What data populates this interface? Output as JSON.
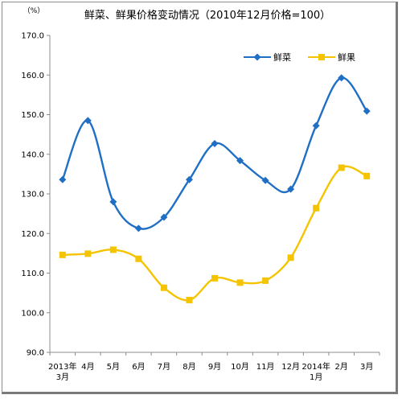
{
  "chart_data": {
    "type": "line",
    "title": "鲜菜、鲜果价格变动情况（2010年12月价格=100）",
    "ylabel": "（%）",
    "xlabel": "",
    "ylim": [
      90,
      170
    ],
    "y_ticks": [
      "90.0",
      "100.0",
      "110.0",
      "120.0",
      "130.0",
      "140.0",
      "150.0",
      "160.0",
      "170.0"
    ],
    "categories": [
      [
        "2013年",
        "3月"
      ],
      [
        "4月"
      ],
      [
        "5月"
      ],
      [
        "6月"
      ],
      [
        "7月"
      ],
      [
        "8月"
      ],
      [
        "9月"
      ],
      [
        "10月"
      ],
      [
        "11月"
      ],
      [
        "12月"
      ],
      [
        "2014年",
        "1月"
      ],
      [
        "2月"
      ],
      [
        "3月"
      ]
    ],
    "series": [
      {
        "name": "鲜菜",
        "color": "#1f6fc5",
        "marker": "diamond",
        "values": [
          133.6,
          148.5,
          128.0,
          121.3,
          124.1,
          133.6,
          142.7,
          138.4,
          133.4,
          131.2,
          147.2,
          159.3,
          150.9
        ]
      },
      {
        "name": "鲜果",
        "color": "#f5c400",
        "marker": "square",
        "values": [
          114.6,
          114.9,
          115.9,
          113.6,
          106.3,
          103.2,
          108.7,
          107.6,
          108.1,
          113.9,
          126.4,
          136.6,
          134.5
        ]
      }
    ],
    "legend_position": "top-right",
    "grid": false
  }
}
